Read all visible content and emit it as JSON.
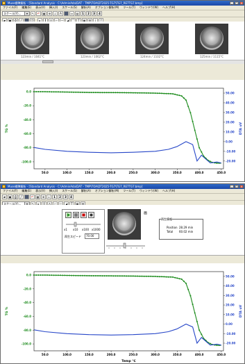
{
  "window1": {
    "title": "Muse標準解析 - [Standard Analysis - C:\\AdminAda\\DAT - TMP\\TOA\\DT2025-TG7\\TG7_RE7TG7.bmp]",
    "menu": [
      "ファイル(F)",
      "編集(E)",
      "表示(V)",
      "挿入(I)",
      "スケール(S)",
      "解析(A)",
      "オプション解析(M)",
      "ツール(T)",
      "ウィンドウ(W)",
      "ヘルプ(H)"
    ],
    "combo_value": "スケール(Y)...",
    "toolbar_numbers": [
      "1",
      "2",
      "3",
      "4"
    ],
    "thumbnails": [
      {
        "caption": "123min / 1041°C"
      },
      {
        "caption": "123min / 1062°C"
      },
      {
        "caption": "124min / 1102°C"
      },
      {
        "caption": "125min / 1115°C"
      }
    ]
  },
  "window2": {
    "title": "Muse標準解析 - [Standard Analysis - C:\\AdminAda\\DAT - TMP\\TOA\\DT2025-TG7\\TG7_RE7TG7.bmp]",
    "menu": [
      "ファイル(F)",
      "編集(E)",
      "表示(V)",
      "挿入(I)",
      "スケール(S)",
      "解析(A)",
      "オプション解析(M)",
      "ツール(T)",
      "ウィンドウ(W)",
      "ヘルプ(H)"
    ],
    "combo_value": "スケール(Y)...",
    "toolbar_numbers": [
      "1",
      "2",
      "3",
      "4"
    ],
    "player": {
      "scale_labels": [
        "x1",
        "x10",
        "x100",
        "x1000"
      ],
      "speed_label": "再生スピード",
      "speed_value": "70.00",
      "image_label": "画"
    },
    "info": {
      "title": "再生情報",
      "position_label": "Position",
      "position_value": "28.29 min",
      "total_label": "Total",
      "total_value": "60.02 min"
    }
  },
  "chart_data": [
    {
      "type": "line",
      "xlabel": "",
      "ylabel_left": "TG %",
      "ylabel_right": "DTA uV",
      "xlim": [
        25,
        455
      ],
      "x_ticks": [
        "50.0",
        "100.0",
        "150.0",
        "200.0",
        "250.0",
        "300.0",
        "350.0",
        "400.0",
        "450.0"
      ],
      "ylim_left": [
        -110,
        5
      ],
      "ylim_right": [
        -28,
        55
      ],
      "y_ticks_left": [
        "0.0",
        "-20.0",
        "-40.0",
        "-60.0",
        "-80.0",
        "-100.0"
      ],
      "y_ticks_right": [
        "50.00",
        "40.00",
        "30.00",
        "20.00",
        "10.00",
        "0.00",
        "-10.00",
        "-20.00"
      ],
      "series": [
        {
          "axis": "left",
          "color": "#1a8a1a",
          "x": [
            25,
            50,
            100,
            150,
            200,
            250,
            300,
            340,
            360,
            370,
            380,
            390,
            400,
            410,
            420,
            430,
            440,
            450
          ],
          "y": [
            0,
            0,
            -0.5,
            -1,
            -1.2,
            -1.5,
            -2,
            -3,
            -6,
            -12,
            -30,
            -55,
            -80,
            -92,
            -98,
            -101,
            -102,
            -102
          ]
        },
        {
          "axis": "right",
          "color": "#2646c8",
          "x": [
            25,
            50,
            100,
            150,
            200,
            250,
            300,
            330,
            350,
            370,
            385,
            395,
            405,
            415,
            425,
            440,
            450
          ],
          "y": [
            -6,
            -8,
            -10,
            -11,
            -11.5,
            -11,
            -10,
            -8,
            -5,
            0,
            -3,
            -20,
            -14,
            -18,
            -22,
            -21,
            -22
          ]
        }
      ]
    },
    {
      "type": "line",
      "xlabel": "Temp ℃",
      "ylabel_left": "TG %",
      "ylabel_right": "DTA uV",
      "xlim": [
        25,
        455
      ],
      "x_ticks": [
        "50.0",
        "100.0",
        "150.0",
        "200.0",
        "250.0",
        "300.0",
        "350.0",
        "400.0",
        "450.0"
      ],
      "ylim_left": [
        -110,
        5
      ],
      "ylim_right": [
        -28,
        55
      ],
      "y_ticks_left": [
        "0.0",
        "-20.0",
        "-40.0",
        "-60.0",
        "-80.0",
        "-100.0"
      ],
      "y_ticks_right": [
        "50.00",
        "40.00",
        "30.00",
        "20.00",
        "10.00",
        "0.00",
        "-10.00",
        "-20.00"
      ],
      "series": [
        {
          "axis": "left",
          "color": "#1a8a1a",
          "x": [
            25,
            50,
            100,
            150,
            200,
            250,
            300,
            340,
            360,
            370,
            380,
            390,
            400,
            410,
            420,
            430,
            440,
            450
          ],
          "y": [
            0,
            0,
            -0.5,
            -1,
            -1.2,
            -1.5,
            -2,
            -3,
            -6,
            -12,
            -30,
            -55,
            -80,
            -92,
            -98,
            -101,
            -102,
            -102
          ]
        },
        {
          "axis": "right",
          "color": "#2646c8",
          "x": [
            25,
            50,
            100,
            150,
            200,
            250,
            300,
            330,
            350,
            370,
            385,
            395,
            405,
            415,
            425,
            440,
            450
          ],
          "y": [
            -6,
            -8,
            -10,
            -11,
            -11.5,
            -11,
            -10,
            -8,
            -5,
            0,
            -3,
            -20,
            -14,
            -18,
            -22,
            -21,
            -22
          ]
        }
      ]
    }
  ]
}
